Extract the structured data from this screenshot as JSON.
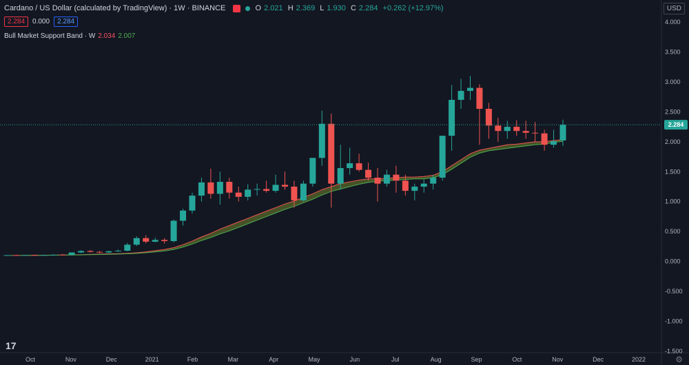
{
  "header": {
    "title": "Cardano / US Dollar (calculated by TradingView) · 1W · BINANCE",
    "ohlc": {
      "o_label": "O",
      "o": "2.021",
      "h_label": "H",
      "h": "2.369",
      "l_label": "L",
      "l": "1.930",
      "c_label": "C",
      "c": "2.284",
      "change": "+0.262 (+12.97%)"
    },
    "bid": "2.284",
    "spread": "0.000",
    "ask": "2.284"
  },
  "indicator": {
    "name": "Bull Market Support Band · W",
    "upper": "2.034",
    "lower": "2.007"
  },
  "currency_button": "USD",
  "price_tag": "2.284",
  "colors": {
    "background": "#131722",
    "up": "#26a69a",
    "down": "#ef5350",
    "band_fill": "#5d6b2a",
    "band_upper": "#ef5350",
    "band_lower": "#4caf50"
  },
  "chart_data": {
    "type": "candlestick",
    "y_ticks": [
      "4.000",
      "3.500",
      "3.000",
      "2.500",
      "2.000",
      "1.500",
      "1.000",
      "0.500",
      "0.000",
      "-0.500",
      "-1.000",
      "-1.500"
    ],
    "ylim": [
      -1.5,
      4.0
    ],
    "x_labels": [
      "Oct",
      "Nov",
      "Dec",
      "2021",
      "Feb",
      "Mar",
      "Apr",
      "May",
      "Jun",
      "Jul",
      "Aug",
      "Sep",
      "Oct",
      "Nov",
      "Dec",
      "2022"
    ],
    "current_price": 2.284,
    "candles": [
      {
        "o": 0.1,
        "h": 0.108,
        "l": 0.094,
        "c": 0.105
      },
      {
        "o": 0.105,
        "h": 0.112,
        "l": 0.098,
        "c": 0.102
      },
      {
        "o": 0.102,
        "h": 0.11,
        "l": 0.095,
        "c": 0.107
      },
      {
        "o": 0.107,
        "h": 0.115,
        "l": 0.1,
        "c": 0.104
      },
      {
        "o": 0.104,
        "h": 0.112,
        "l": 0.098,
        "c": 0.108
      },
      {
        "o": 0.108,
        "h": 0.118,
        "l": 0.1,
        "c": 0.112
      },
      {
        "o": 0.112,
        "h": 0.125,
        "l": 0.105,
        "c": 0.11
      },
      {
        "o": 0.11,
        "h": 0.14,
        "l": 0.105,
        "c": 0.15
      },
      {
        "o": 0.15,
        "h": 0.185,
        "l": 0.14,
        "c": 0.175
      },
      {
        "o": 0.175,
        "h": 0.19,
        "l": 0.15,
        "c": 0.16
      },
      {
        "o": 0.16,
        "h": 0.175,
        "l": 0.14,
        "c": 0.15
      },
      {
        "o": 0.15,
        "h": 0.18,
        "l": 0.14,
        "c": 0.17
      },
      {
        "o": 0.17,
        "h": 0.2,
        "l": 0.16,
        "c": 0.18
      },
      {
        "o": 0.18,
        "h": 0.31,
        "l": 0.17,
        "c": 0.28
      },
      {
        "o": 0.28,
        "h": 0.42,
        "l": 0.26,
        "c": 0.39
      },
      {
        "o": 0.39,
        "h": 0.44,
        "l": 0.3,
        "c": 0.33
      },
      {
        "o": 0.33,
        "h": 0.4,
        "l": 0.32,
        "c": 0.36
      },
      {
        "o": 0.36,
        "h": 0.39,
        "l": 0.3,
        "c": 0.34
      },
      {
        "o": 0.34,
        "h": 0.7,
        "l": 0.32,
        "c": 0.68
      },
      {
        "o": 0.68,
        "h": 0.88,
        "l": 0.6,
        "c": 0.85
      },
      {
        "o": 0.85,
        "h": 1.15,
        "l": 0.8,
        "c": 1.1
      },
      {
        "o": 1.1,
        "h": 1.4,
        "l": 1.0,
        "c": 1.32
      },
      {
        "o": 1.32,
        "h": 1.55,
        "l": 1.05,
        "c": 1.13
      },
      {
        "o": 1.13,
        "h": 1.5,
        "l": 0.95,
        "c": 1.33
      },
      {
        "o": 1.33,
        "h": 1.4,
        "l": 1.05,
        "c": 1.15
      },
      {
        "o": 1.15,
        "h": 1.25,
        "l": 1.0,
        "c": 1.08
      },
      {
        "o": 1.08,
        "h": 1.29,
        "l": 1.02,
        "c": 1.2
      },
      {
        "o": 1.2,
        "h": 1.3,
        "l": 1.1,
        "c": 1.21
      },
      {
        "o": 1.21,
        "h": 1.35,
        "l": 1.15,
        "c": 1.18
      },
      {
        "o": 1.18,
        "h": 1.45,
        "l": 1.15,
        "c": 1.28
      },
      {
        "o": 1.28,
        "h": 1.5,
        "l": 1.2,
        "c": 1.25
      },
      {
        "o": 1.25,
        "h": 1.35,
        "l": 0.9,
        "c": 1.02
      },
      {
        "o": 1.02,
        "h": 1.35,
        "l": 1.0,
        "c": 1.3
      },
      {
        "o": 1.3,
        "h": 1.7,
        "l": 1.25,
        "c": 1.73
      },
      {
        "o": 1.73,
        "h": 2.52,
        "l": 1.6,
        "c": 2.3
      },
      {
        "o": 2.3,
        "h": 2.47,
        "l": 0.9,
        "c": 1.3
      },
      {
        "o": 1.3,
        "h": 1.95,
        "l": 1.2,
        "c": 1.56
      },
      {
        "o": 1.56,
        "h": 1.9,
        "l": 1.45,
        "c": 1.64
      },
      {
        "o": 1.64,
        "h": 1.8,
        "l": 1.5,
        "c": 1.53
      },
      {
        "o": 1.53,
        "h": 1.65,
        "l": 1.35,
        "c": 1.4
      },
      {
        "o": 1.4,
        "h": 1.56,
        "l": 1.0,
        "c": 1.3
      },
      {
        "o": 1.3,
        "h": 1.53,
        "l": 1.25,
        "c": 1.45
      },
      {
        "o": 1.45,
        "h": 1.6,
        "l": 1.15,
        "c": 1.35
      },
      {
        "o": 1.35,
        "h": 1.45,
        "l": 1.1,
        "c": 1.18
      },
      {
        "o": 1.18,
        "h": 1.3,
        "l": 1.02,
        "c": 1.25
      },
      {
        "o": 1.25,
        "h": 1.37,
        "l": 1.15,
        "c": 1.3
      },
      {
        "o": 1.3,
        "h": 1.45,
        "l": 1.2,
        "c": 1.4
      },
      {
        "o": 1.4,
        "h": 2.1,
        "l": 1.35,
        "c": 2.1
      },
      {
        "o": 2.1,
        "h": 2.95,
        "l": 1.85,
        "c": 2.7
      },
      {
        "o": 2.7,
        "h": 3.05,
        "l": 2.55,
        "c": 2.85
      },
      {
        "o": 2.85,
        "h": 3.1,
        "l": 2.7,
        "c": 2.9
      },
      {
        "o": 2.9,
        "h": 2.96,
        "l": 1.95,
        "c": 2.55
      },
      {
        "o": 2.55,
        "h": 2.65,
        "l": 2.05,
        "c": 2.27
      },
      {
        "o": 2.27,
        "h": 2.4,
        "l": 2.0,
        "c": 2.18
      },
      {
        "o": 2.18,
        "h": 2.35,
        "l": 2.05,
        "c": 2.25
      },
      {
        "o": 2.25,
        "h": 2.36,
        "l": 2.1,
        "c": 2.18
      },
      {
        "o": 2.18,
        "h": 2.35,
        "l": 2.05,
        "c": 2.15
      },
      {
        "o": 2.15,
        "h": 2.33,
        "l": 2.0,
        "c": 2.14
      },
      {
        "o": 2.14,
        "h": 2.2,
        "l": 1.85,
        "c": 1.95
      },
      {
        "o": 1.95,
        "h": 2.2,
        "l": 1.9,
        "c": 2.01
      },
      {
        "o": 2.021,
        "h": 2.369,
        "l": 1.93,
        "c": 2.284
      }
    ],
    "band_upper": [
      0.1,
      0.101,
      0.102,
      0.103,
      0.104,
      0.106,
      0.108,
      0.11,
      0.113,
      0.118,
      0.122,
      0.126,
      0.13,
      0.135,
      0.145,
      0.16,
      0.18,
      0.2,
      0.23,
      0.28,
      0.34,
      0.41,
      0.47,
      0.54,
      0.6,
      0.66,
      0.72,
      0.78,
      0.84,
      0.9,
      0.96,
      1.01,
      1.07,
      1.13,
      1.2,
      1.25,
      1.3,
      1.33,
      1.36,
      1.38,
      1.38,
      1.39,
      1.4,
      1.41,
      1.41,
      1.42,
      1.44,
      1.5,
      1.6,
      1.7,
      1.8,
      1.86,
      1.89,
      1.92,
      1.95,
      1.96,
      1.98,
      2.0,
      2.0,
      2.02,
      2.034
    ],
    "band_lower": [
      0.1,
      0.1,
      0.101,
      0.102,
      0.103,
      0.104,
      0.106,
      0.108,
      0.11,
      0.114,
      0.117,
      0.12,
      0.124,
      0.128,
      0.135,
      0.145,
      0.16,
      0.175,
      0.2,
      0.24,
      0.29,
      0.35,
      0.4,
      0.46,
      0.51,
      0.57,
      0.63,
      0.69,
      0.75,
      0.81,
      0.87,
      0.92,
      0.98,
      1.04,
      1.11,
      1.17,
      1.21,
      1.25,
      1.29,
      1.32,
      1.34,
      1.35,
      1.36,
      1.37,
      1.38,
      1.38,
      1.4,
      1.45,
      1.54,
      1.64,
      1.74,
      1.81,
      1.85,
      1.87,
      1.89,
      1.91,
      1.93,
      1.95,
      1.96,
      1.99,
      2.007
    ]
  }
}
